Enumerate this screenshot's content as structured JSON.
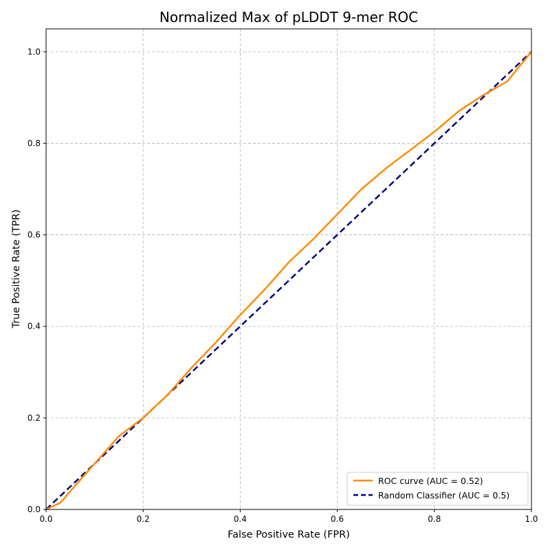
{
  "chart_data": {
    "type": "line",
    "title": "Normalized Max of pLDDT 9-mer ROC",
    "xlabel": "False Positive Rate (FPR)",
    "ylabel": "True Positive Rate (TPR)",
    "xlim": [
      0.0,
      1.0
    ],
    "ylim": [
      0.0,
      1.05
    ],
    "xticks": [
      "0.0",
      "0.2",
      "0.4",
      "0.6",
      "0.8",
      "1.0"
    ],
    "yticks": [
      "0.0",
      "0.2",
      "0.4",
      "0.6",
      "0.8",
      "1.0"
    ],
    "grid": true,
    "legend_position": "lower-right",
    "series": [
      {
        "name": "ROC curve (AUC = 0.52)",
        "color": "#ff8c00",
        "style": "solid",
        "x": [
          0.0,
          0.03,
          0.05,
          0.1,
          0.15,
          0.2,
          0.25,
          0.3,
          0.35,
          0.4,
          0.45,
          0.5,
          0.55,
          0.6,
          0.65,
          0.7,
          0.75,
          0.8,
          0.85,
          0.9,
          0.95,
          1.0
        ],
        "y": [
          0.0,
          0.015,
          0.04,
          0.1,
          0.16,
          0.2,
          0.25,
          0.31,
          0.365,
          0.425,
          0.48,
          0.54,
          0.59,
          0.645,
          0.7,
          0.745,
          0.785,
          0.825,
          0.87,
          0.905,
          0.935,
          1.0
        ]
      },
      {
        "name": "Random Classifier (AUC = 0.5)",
        "color": "#000080",
        "style": "dashed",
        "x": [
          0.0,
          1.0
        ],
        "y": [
          0.0,
          1.0
        ]
      }
    ]
  }
}
